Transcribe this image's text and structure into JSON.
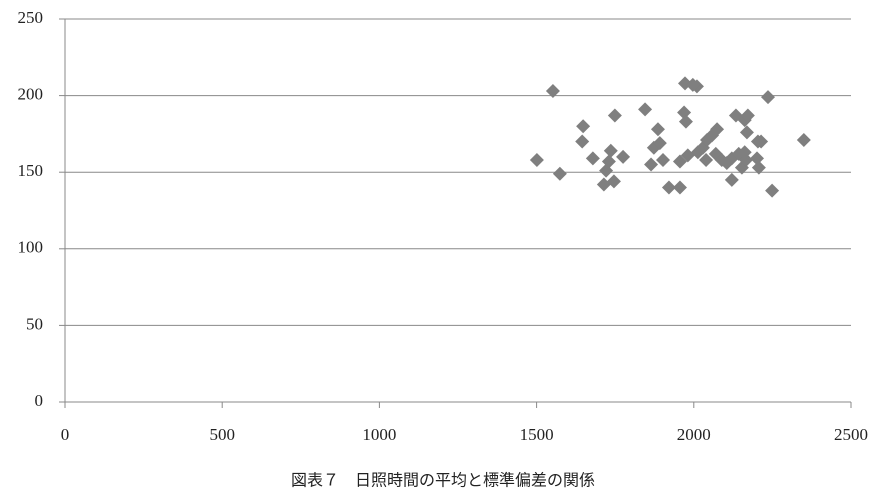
{
  "chart_data": {
    "type": "scatter",
    "title": "図表７　日照時間の平均と標準偏差の関係",
    "x": [
      1501,
      1552,
      1574,
      1648,
      1645,
      1679,
      1714,
      1721,
      1736,
      1730,
      1749,
      1746,
      1775,
      1845,
      1864,
      1873,
      1886,
      1892,
      1902,
      1921,
      1956,
      1956,
      1969,
      1972,
      1975,
      1981,
      2010,
      1997,
      2013,
      2029,
      2039,
      2042,
      2058,
      2074,
      2070,
      2089,
      2105,
      2121,
      2121,
      2134,
      2143,
      2153,
      2162,
      2166,
      2169,
      2172,
      2162,
      2201,
      2207,
      2214,
      2204,
      2236,
      2249,
      2350
    ],
    "values": [
      158,
      203,
      149,
      180,
      170,
      159,
      142,
      151,
      164,
      157,
      187,
      144,
      160,
      191,
      155,
      166,
      178,
      169,
      158,
      140,
      140,
      157,
      189,
      208,
      183,
      161,
      206,
      207,
      163,
      166,
      158,
      171,
      174,
      178,
      162,
      158,
      156,
      145,
      159,
      187,
      162,
      153,
      184,
      158,
      176,
      187,
      163,
      159,
      153,
      170,
      170,
      199,
      138,
      171
    ],
    "color": "#7f7f7f",
    "xlim": [
      0,
      2500
    ],
    "xticks": [
      0,
      500,
      1000,
      1500,
      2000,
      2500
    ],
    "ylim": [
      0,
      250
    ],
    "yticks": [
      0,
      50,
      100,
      150,
      200,
      250
    ],
    "grid": true
  }
}
